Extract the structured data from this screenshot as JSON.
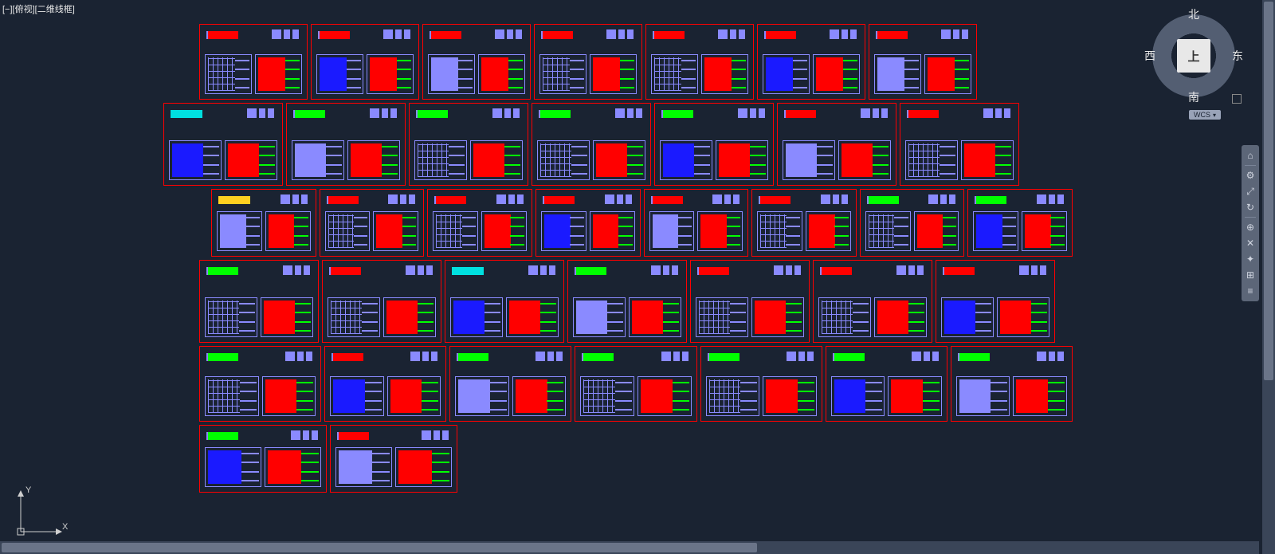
{
  "viewport_label": "[−][俯视][二维线框]",
  "viewcube": {
    "face": "上",
    "n": "北",
    "s": "南",
    "e": "东",
    "w": "西"
  },
  "wcs": "WCS",
  "ucs": {
    "x": "X",
    "y": "Y"
  },
  "navbar_icons": [
    "⌂",
    "⚙",
    "⤢",
    "↻",
    "⊕",
    "✕",
    "✦",
    "⊞",
    "≡"
  ],
  "colors": {
    "bg": "#1a2332",
    "sheet_border": "#ff0000",
    "green": "#00ff00",
    "red": "#ff0000",
    "blue": "#1a1aff",
    "purple": "#8a8aff",
    "yellow": "#ffd020",
    "cyan": "#00e0e0"
  },
  "rows": [
    {
      "cls": "r1",
      "size": "sm",
      "count": 7,
      "tops": [
        "red",
        "red",
        "red",
        "red",
        "red",
        "red",
        "red"
      ]
    },
    {
      "cls": "r2",
      "size": "lg",
      "count": 7,
      "tops": [
        "cyan",
        "green",
        "green",
        "green",
        "green",
        "red",
        "red"
      ]
    },
    {
      "cls": "r3",
      "size": "r3s",
      "count": 8,
      "tops": [
        "yellow",
        "red",
        "red",
        "red",
        "red",
        "red",
        "green",
        "green"
      ]
    },
    {
      "cls": "r4",
      "size": "lg",
      "count": 7,
      "tops": [
        "green",
        "red",
        "cyan",
        "green",
        "red",
        "red",
        "red"
      ]
    },
    {
      "cls": "r5",
      "size": "xs",
      "count": 7,
      "tops": [
        "green",
        "red",
        "green",
        "green",
        "green",
        "green",
        "green"
      ]
    },
    {
      "cls": "r6",
      "size": "xxl",
      "count": 2,
      "tops": [
        "green",
        "red"
      ]
    }
  ]
}
